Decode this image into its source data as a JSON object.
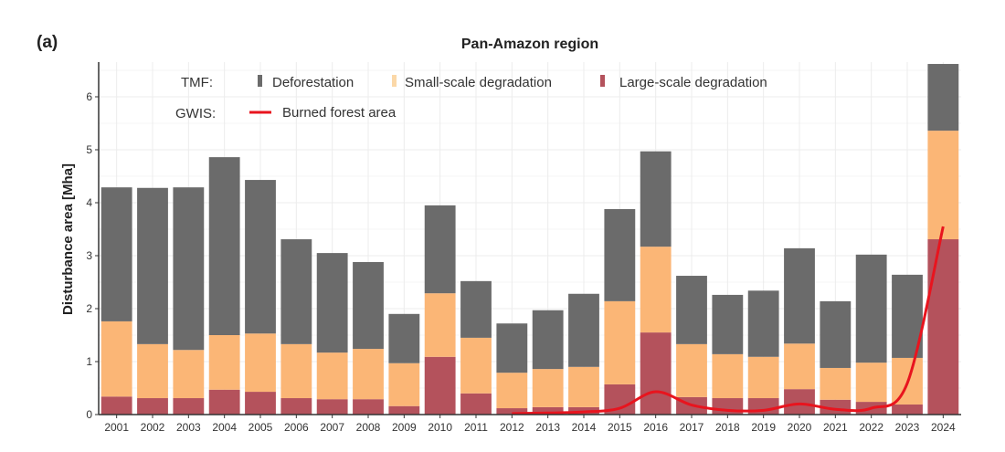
{
  "panel_label": "(a)",
  "colors": {
    "deforestation": "#6b6b6b",
    "small_scale_degradation": "#fbb676",
    "large_scale_degradation": "#b4525c",
    "burned_forest_area": "#e8141e"
  },
  "legend": {
    "tmf_label": "TMF:",
    "gwis_label": "GWIS:",
    "items": [
      {
        "key": "deforestation",
        "label": "Deforestation"
      },
      {
        "key": "small_scale_degradation",
        "label": "Small-scale degradation"
      },
      {
        "key": "large_scale_degradation",
        "label": "Large-scale degradation"
      },
      {
        "key": "burned_forest_area",
        "label": "Burned forest area"
      }
    ]
  },
  "chart_data": {
    "type": "bar",
    "stacked": true,
    "title": "Pan-Amazon region",
    "xlabel": "",
    "ylabel": "Disturbance area [Mha]",
    "ylim": [
      0,
      6.6
    ],
    "yticks": [
      0,
      1,
      2,
      3,
      4,
      5,
      6
    ],
    "grid": true,
    "legend_position": "top-left-inside",
    "categories": [
      "2001",
      "2002",
      "2003",
      "2004",
      "2005",
      "2006",
      "2007",
      "2008",
      "2009",
      "2010",
      "2011",
      "2012",
      "2013",
      "2014",
      "2015",
      "2016",
      "2017",
      "2018",
      "2019",
      "2020",
      "2021",
      "2022",
      "2023",
      "2024"
    ],
    "series": [
      {
        "name": "Large-scale degradation",
        "source": "TMF",
        "kind": "bar",
        "values": [
          0.34,
          0.31,
          0.31,
          0.47,
          0.43,
          0.31,
          0.29,
          0.29,
          0.16,
          1.09,
          0.4,
          0.12,
          0.14,
          0.14,
          0.57,
          1.55,
          0.33,
          0.31,
          0.31,
          0.48,
          0.28,
          0.24,
          0.19,
          3.31
        ]
      },
      {
        "name": "Small-scale degradation",
        "source": "TMF",
        "kind": "bar",
        "values": [
          1.42,
          1.02,
          0.91,
          1.03,
          1.1,
          1.02,
          0.88,
          0.95,
          0.81,
          1.2,
          1.05,
          0.67,
          0.72,
          0.76,
          1.57,
          1.62,
          1.0,
          0.83,
          0.78,
          0.86,
          0.6,
          0.74,
          0.88,
          2.05
        ]
      },
      {
        "name": "Deforestation",
        "source": "TMF",
        "kind": "bar",
        "values": [
          2.53,
          2.95,
          3.07,
          3.36,
          2.9,
          1.98,
          1.88,
          1.64,
          0.93,
          1.66,
          1.07,
          0.93,
          1.11,
          1.38,
          1.74,
          1.8,
          1.29,
          1.12,
          1.25,
          1.8,
          1.26,
          2.04,
          1.57,
          1.26
        ]
      },
      {
        "name": "Burned forest area",
        "source": "GWIS",
        "kind": "line",
        "values": [
          null,
          null,
          null,
          null,
          null,
          null,
          null,
          null,
          null,
          null,
          null,
          0.02,
          0.03,
          0.05,
          0.12,
          0.43,
          0.18,
          0.08,
          0.08,
          0.2,
          0.1,
          0.12,
          0.59,
          3.55
        ]
      }
    ]
  }
}
